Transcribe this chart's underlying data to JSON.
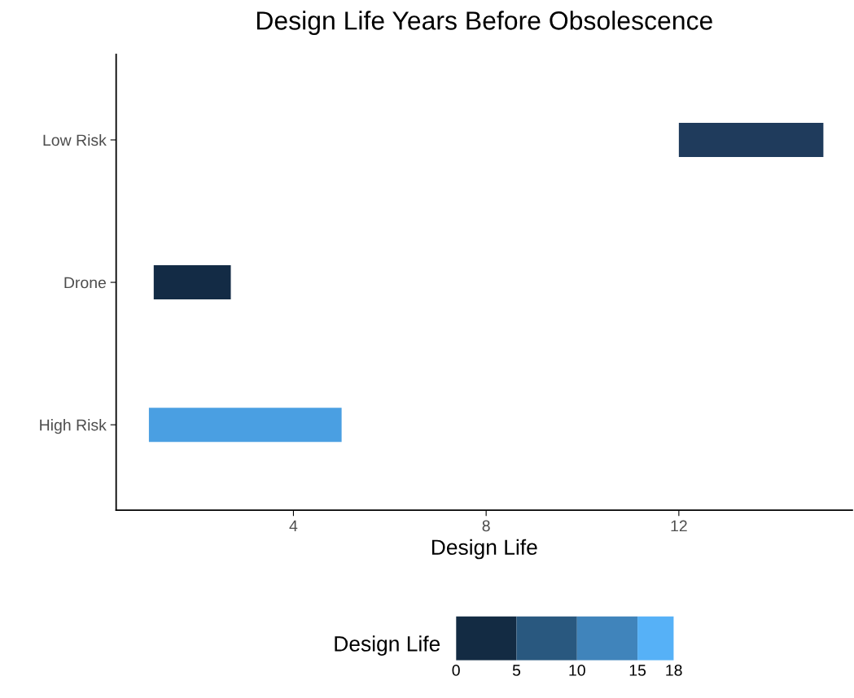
{
  "chart_data": {
    "type": "bar",
    "orientation": "horizontal",
    "title": "Design Life Years Before Obsolescence",
    "xlabel": "Design Life",
    "categories": [
      "Low Risk",
      "Drone",
      "High Risk"
    ],
    "base": [
      12,
      1.1,
      1.0
    ],
    "values": [
      3.0,
      1.6,
      4.0
    ],
    "colors": [
      "#1f3b5c",
      "#132b45",
      "#4a9fe2"
    ],
    "xlim": [
      0.32,
      15.6
    ],
    "xticks": [
      4,
      8,
      12
    ],
    "clabel": "Design Life",
    "clim": [
      0,
      18
    ],
    "cticks": [
      0,
      5,
      10,
      15,
      18
    ],
    "grid": false
  }
}
